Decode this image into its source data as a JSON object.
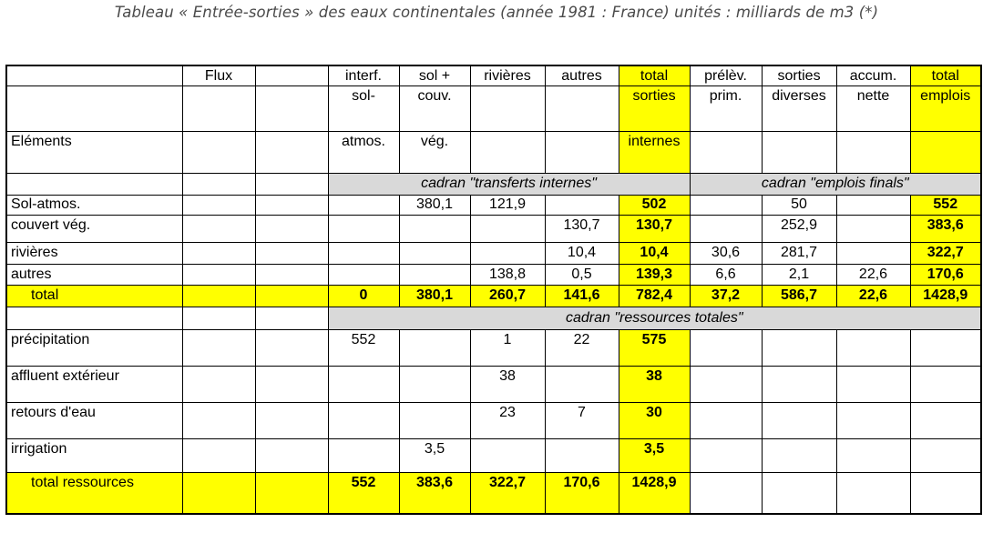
{
  "caption": "Tableau « Entrée-sorties » des eaux continentales (année 1981 : France)  unités : milliards de m3 (*)",
  "header": {
    "flux": "Flux",
    "elements": "Eléments",
    "cols": [
      {
        "l1": "interf.",
        "l2": "sol-",
        "l3": "atmos."
      },
      {
        "l1": "sol +",
        "l2": "couv.",
        "l3": "vég."
      },
      {
        "l1": "rivières",
        "l2": "",
        "l3": ""
      },
      {
        "l1": "autres",
        "l2": "",
        "l3": ""
      },
      {
        "l1": "total",
        "l2": "sorties",
        "l3": "internes"
      },
      {
        "l1": "prélèv.",
        "l2": "prim.",
        "l3": ""
      },
      {
        "l1": "sorties",
        "l2": "diverses",
        "l3": ""
      },
      {
        "l1": "accum.",
        "l2": "nette",
        "l3": ""
      },
      {
        "l1": "total",
        "l2": "emplois",
        "l3": ""
      }
    ]
  },
  "sections": {
    "transferts": "cadran \"transferts internes\"",
    "emplois": "cadran \"emplois finals\"",
    "ressources": "cadran \"ressources totales\""
  },
  "rows": [
    {
      "label": "Sol-atmos.",
      "v": [
        "",
        "380,1",
        "121,9",
        "",
        "502",
        "",
        "50",
        "",
        "552"
      ]
    },
    {
      "label": "couvert vég.",
      "v": [
        "",
        "",
        "",
        "130,7",
        "130,7",
        "",
        "252,9",
        "",
        "383,6"
      ]
    },
    {
      "label": "rivières",
      "v": [
        "",
        "",
        "",
        "10,4",
        "10,4",
        "30,6",
        "281,7",
        "",
        "322,7"
      ]
    },
    {
      "label": "autres",
      "v": [
        "",
        "",
        "138,8",
        "0,5",
        "139,3",
        "6,6",
        "2,1",
        "22,6",
        "170,6"
      ]
    },
    {
      "label": "total",
      "v": [
        "0",
        "380,1",
        "260,7",
        "141,6",
        "782,4",
        "37,2",
        "586,7",
        "22,6",
        "1428,9"
      ]
    },
    {
      "label": "précipitation",
      "v": [
        "552",
        "",
        "1",
        "22",
        "575"
      ]
    },
    {
      "label": "affluent extérieur",
      "v": [
        "",
        "",
        "38",
        "",
        "38"
      ]
    },
    {
      "label": "retours d'eau",
      "v": [
        "",
        "",
        "23",
        "7",
        "30"
      ]
    },
    {
      "label": "irrigation",
      "v": [
        "",
        "3,5",
        "",
        "",
        "3,5"
      ]
    },
    {
      "label": "total ressources",
      "v": [
        "552",
        "383,6",
        "322,7",
        "170,6",
        "1428,9"
      ]
    }
  ],
  "colors": {
    "highlight": "#ffff00",
    "section_band": "#d9d9d9",
    "caption_text": "#4a4a4a"
  }
}
